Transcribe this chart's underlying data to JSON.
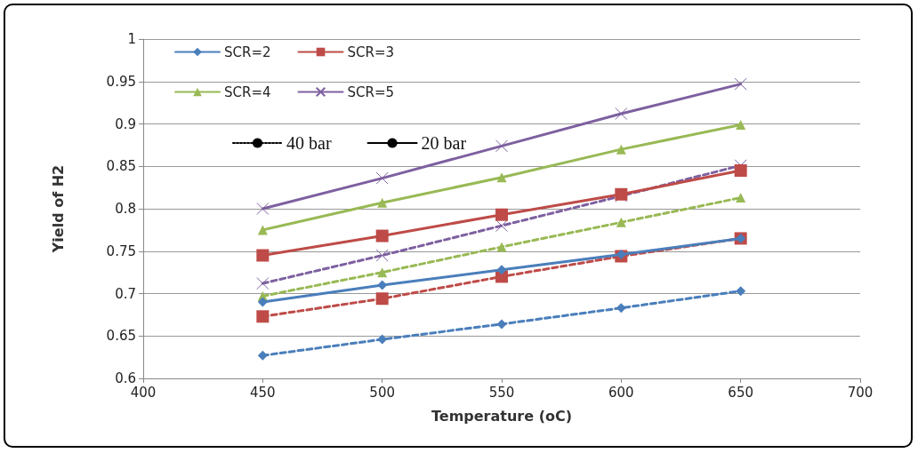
{
  "chart_data": {
    "type": "line",
    "xlabel": "Temperature (oC)",
    "ylabel": "Yield of H2",
    "x": [
      450,
      500,
      550,
      600,
      650
    ],
    "xlim": [
      400,
      700
    ],
    "xticks": [
      400,
      450,
      500,
      550,
      600,
      650,
      700
    ],
    "ylim": [
      0.6,
      1
    ],
    "yticks": [
      0.6,
      0.65,
      0.7,
      0.75,
      0.8,
      0.85,
      0.9,
      0.95,
      1
    ],
    "grid": "y",
    "legend": "top left",
    "series": [
      {
        "name": "SCR=2",
        "color": "#4a7ebb",
        "marker": "diamond",
        "line_style": "solid",
        "values": [
          0.69,
          0.71,
          0.728,
          0.746,
          0.765
        ]
      },
      {
        "name": "SCR=3",
        "color": "#be4b48",
        "marker": "square",
        "line_style": "solid",
        "values": [
          0.745,
          0.768,
          0.793,
          0.817,
          0.845
        ]
      },
      {
        "name": "SCR=4",
        "color": "#98b954",
        "marker": "triangle",
        "line_style": "solid",
        "values": [
          0.775,
          0.807,
          0.837,
          0.87,
          0.899
        ]
      },
      {
        "name": "SCR=5",
        "color": "#7d60a0",
        "marker": "cross",
        "line_style": "solid",
        "values": [
          0.8,
          0.836,
          0.874,
          0.912,
          0.947
        ]
      },
      {
        "color": "#4a7ebb",
        "marker": "diamond",
        "line_style": "dashed",
        "values": [
          0.627,
          0.646,
          0.664,
          0.683,
          0.703
        ]
      },
      {
        "color": "#be4b48",
        "marker": "square",
        "line_style": "dashed",
        "values": [
          0.673,
          0.694,
          0.72,
          0.744,
          0.765
        ]
      },
      {
        "color": "#98b954",
        "marker": "triangle",
        "line_style": "dashed",
        "values": [
          0.697,
          0.725,
          0.755,
          0.784,
          0.813
        ]
      },
      {
        "color": "#7d60a0",
        "marker": "cross",
        "line_style": "dashed",
        "values": [
          0.712,
          0.745,
          0.78,
          0.815,
          0.851
        ]
      },
      {
        "name": "40 bar",
        "color": "#000000",
        "marker": "none",
        "line_style": "dotted",
        "values": [
          null,
          null,
          null,
          null,
          null
        ]
      },
      {
        "name": "20 bar",
        "color": "#000000",
        "marker": "none",
        "line_style": "solid",
        "values": [
          null,
          null,
          null,
          null,
          null
        ]
      }
    ]
  }
}
